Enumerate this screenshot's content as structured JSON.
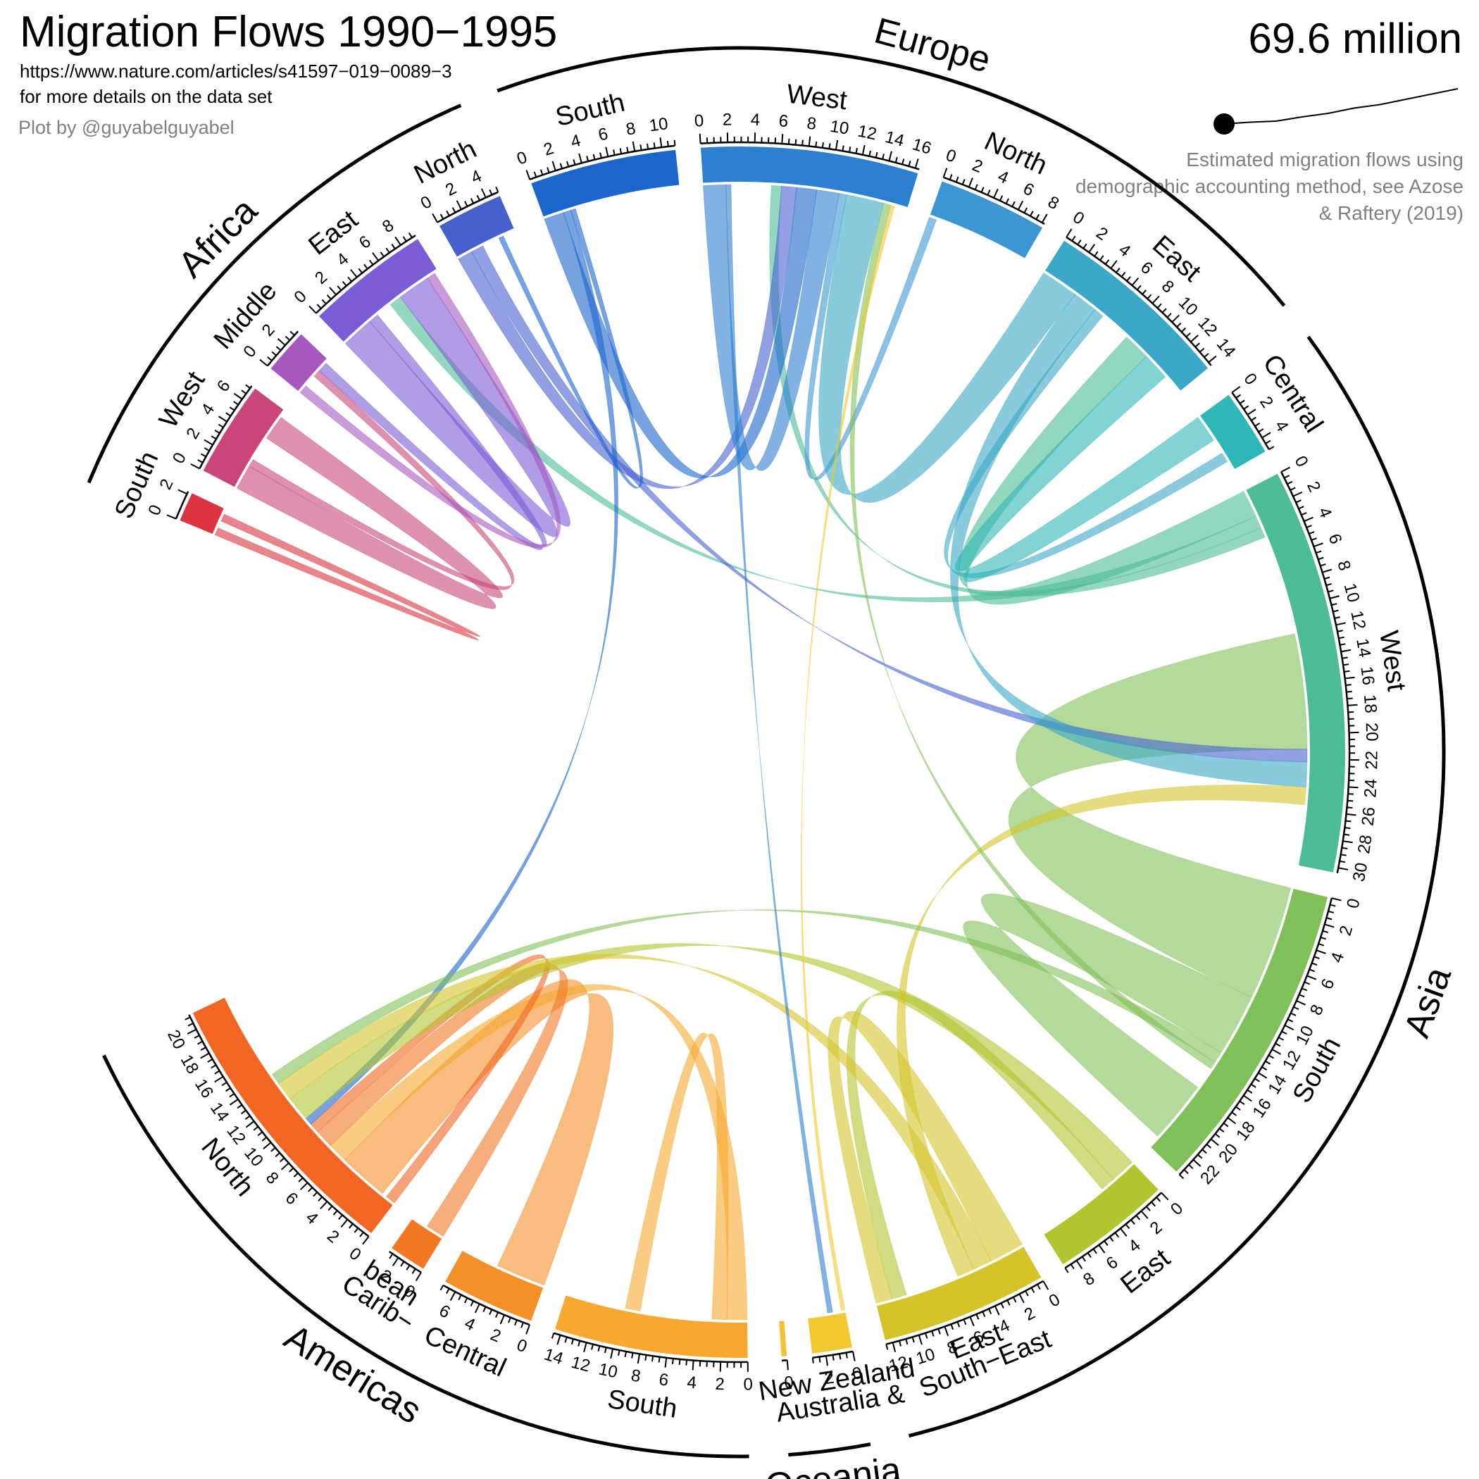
{
  "header": {
    "title": "Migration Flows 1990−1995",
    "source_url": "https://www.nature.com/articles/s41597−019−0089−3",
    "source_note": "for more details on the data set",
    "credit": "Plot by @guyabelguyabel",
    "total_label": "69.6 million",
    "method_note": "Estimated migration flows using demographic accounting method, see Azose & Raftery (2019)"
  },
  "timeline": {
    "points": [
      0.0,
      0.05,
      0.08,
      0.2,
      0.3,
      0.45,
      0.55,
      0.7,
      0.85,
      1.0
    ],
    "current": 0
  },
  "chart_data": {
    "type": "chord",
    "unit": "million",
    "total": 69.6,
    "regions": [
      {
        "name": "Africa",
        "color": "#000000"
      },
      {
        "name": "Europe",
        "color": "#000000"
      },
      {
        "name": "Asia",
        "color": "#000000"
      },
      {
        "name": "Oceania",
        "color": "#000000"
      },
      {
        "name": "Americas",
        "color": "#000000"
      }
    ],
    "sectors": [
      {
        "id": "af-s",
        "label": "South",
        "region": "Africa",
        "total": 2.2,
        "out": 1.2,
        "tick_step": 2,
        "label_step": 2,
        "color": "#d93440"
      },
      {
        "id": "af-w",
        "label": "West",
        "region": "Africa",
        "total": 7.2,
        "out": 4.6,
        "tick_step": 0.5,
        "label_step": 2,
        "color": "#c8467a"
      },
      {
        "id": "af-m",
        "label": "Middle",
        "region": "Africa",
        "total": 3.4,
        "out": 1.7,
        "tick_step": 0.5,
        "label_step": 2,
        "color": "#a559c0"
      },
      {
        "id": "af-e",
        "label": "East",
        "region": "Africa",
        "total": 9.3,
        "out": 4.7,
        "tick_step": 0.5,
        "label_step": 2,
        "color": "#7c5cd5"
      },
      {
        "id": "af-n",
        "label": "North",
        "region": "Africa",
        "total": 5.0,
        "out": 3.6,
        "tick_step": 0.5,
        "label_step": 2,
        "color": "#4660d0"
      },
      {
        "id": "eu-s",
        "label": "South",
        "region": "Europe",
        "total": 11.0,
        "out": 4.9,
        "tick_step": 0.5,
        "label_step": 2,
        "color": "#1b66cc"
      },
      {
        "id": "eu-w",
        "label": "West",
        "region": "Europe",
        "total": 16.3,
        "out": 5.4,
        "tick_step": 0.5,
        "label_step": 2,
        "color": "#2d7fcf"
      },
      {
        "id": "eu-n",
        "label": "North",
        "region": "Europe",
        "total": 8.2,
        "out": 2.6,
        "tick_step": 0.5,
        "label_step": 2,
        "color": "#3d96d3"
      },
      {
        "id": "eu-e",
        "label": "East",
        "region": "Europe",
        "total": 14.3,
        "out": 8.3,
        "tick_step": 0.5,
        "label_step": 2,
        "color": "#3aa8c6"
      },
      {
        "id": "as-c",
        "label": "Central",
        "region": "Asia",
        "total": 5.0,
        "out": 3.4,
        "tick_step": 0.5,
        "label_step": 2,
        "color": "#2fb6b6"
      },
      {
        "id": "as-w",
        "label": "West",
        "region": "Asia",
        "total": 30.4,
        "out": 12.0,
        "tick_step": 0.5,
        "label_step": 2,
        "color": "#4cbc94"
      },
      {
        "id": "as-s",
        "label": "South",
        "region": "Asia",
        "total": 23.5,
        "out": 17.5,
        "tick_step": 0.5,
        "label_step": 2,
        "color": "#80c058"
      },
      {
        "id": "as-e",
        "label": "East",
        "region": "Asia",
        "total": 9.0,
        "out": 6.8,
        "tick_step": 0.5,
        "label_step": 2,
        "color": "#b2c42e"
      },
      {
        "id": "as-se",
        "label": "South−East",
        "label2": "East",
        "region": "Asia",
        "total": 12.5,
        "out": 10.0,
        "tick_step": 0.5,
        "label_step": 2,
        "color": "#d4c42a"
      },
      {
        "id": "oc-an",
        "label": "Australia &",
        "label2": "New Zealand",
        "region": "Oceania",
        "total": 3.0,
        "out": 1.0,
        "tick_step": 0.5,
        "label_step": 2,
        "color": "#f0c832"
      },
      {
        "id": "oc-o",
        "label": "",
        "region": "Oceania",
        "total": 0.4,
        "out": 0.2,
        "tick_step": 0.5,
        "label_step": 2,
        "color": "#f2c33a"
      },
      {
        "id": "am-s",
        "label": "South",
        "region": "Americas",
        "total": 14.5,
        "out": 8.5,
        "tick_step": 0.5,
        "label_step": 2,
        "color": "#f6a92e"
      },
      {
        "id": "am-c",
        "label": "Central",
        "region": "Americas",
        "total": 7.0,
        "out": 5.6,
        "tick_step": 0.5,
        "label_step": 2,
        "color": "#f39028"
      },
      {
        "id": "am-cb",
        "label": "Carib−",
        "label2": "bean",
        "region": "Americas",
        "total": 2.8,
        "out": 2.1,
        "tick_step": 0.5,
        "label_step": 2,
        "color": "#f27824"
      },
      {
        "id": "am-n",
        "label": "North",
        "region": "Americas",
        "total": 21.2,
        "out": 1.2,
        "tick_step": 0.5,
        "label_step": 2,
        "color": "#f26522"
      }
    ],
    "flows": [
      {
        "from": "as-s",
        "to": "as-w",
        "value": 9.2
      },
      {
        "from": "as-s",
        "to": "as-s",
        "value": 5.0
      },
      {
        "from": "as-w",
        "to": "eu-e",
        "value": 2.2
      },
      {
        "from": "as-w",
        "to": "af-e",
        "value": 1.0
      },
      {
        "from": "as-w",
        "to": "eu-w",
        "value": 0.8
      },
      {
        "from": "am-c",
        "to": "am-n",
        "value": 4.0
      },
      {
        "from": "am-s",
        "to": "am-n",
        "value": 1.6
      },
      {
        "from": "am-s",
        "to": "am-s",
        "value": 1.2
      },
      {
        "from": "am-cb",
        "to": "am-n",
        "value": 1.5
      },
      {
        "from": "am-n",
        "to": "am-n",
        "value": 0.8
      },
      {
        "from": "af-w",
        "to": "af-w",
        "value": 2.0
      },
      {
        "from": "af-w",
        "to": "af-m",
        "value": 0.6
      },
      {
        "from": "af-e",
        "to": "af-e",
        "value": 2.6
      },
      {
        "from": "af-e",
        "to": "af-m",
        "value": 0.8
      },
      {
        "from": "af-m",
        "to": "af-e",
        "value": 0.7
      },
      {
        "from": "af-n",
        "to": "eu-w",
        "value": 1.2
      },
      {
        "from": "af-n",
        "to": "as-w",
        "value": 1.0
      },
      {
        "from": "af-s",
        "to": "af-s",
        "value": 0.6
      },
      {
        "from": "eu-s",
        "to": "eu-w",
        "value": 1.6
      },
      {
        "from": "eu-s",
        "to": "am-n",
        "value": 0.6
      },
      {
        "from": "eu-w",
        "to": "eu-w",
        "value": 1.8
      },
      {
        "from": "eu-n",
        "to": "eu-w",
        "value": 0.6
      },
      {
        "from": "eu-e",
        "to": "eu-w",
        "value": 3.0
      },
      {
        "from": "eu-e",
        "to": "as-w",
        "value": 2.0
      },
      {
        "from": "eu-e",
        "to": "as-c",
        "value": 0.8
      },
      {
        "from": "as-c",
        "to": "eu-e",
        "value": 2.2
      },
      {
        "from": "as-e",
        "to": "am-n",
        "value": 2.0
      },
      {
        "from": "as-e",
        "to": "as-se",
        "value": 1.2
      },
      {
        "from": "as-se",
        "to": "as-se",
        "value": 2.8
      },
      {
        "from": "as-se",
        "to": "am-n",
        "value": 1.5
      },
      {
        "from": "as-se",
        "to": "as-w",
        "value": 1.4
      },
      {
        "from": "as-s",
        "to": "am-n",
        "value": 0.9
      },
      {
        "from": "as-s",
        "to": "eu-w",
        "value": 0.6
      },
      {
        "from": "oc-an",
        "to": "eu-w",
        "value": 0.3
      },
      {
        "from": "eu-w",
        "to": "oc-an",
        "value": 0.4
      },
      {
        "from": "eu-s",
        "to": "af-n",
        "value": 0.4
      }
    ]
  }
}
